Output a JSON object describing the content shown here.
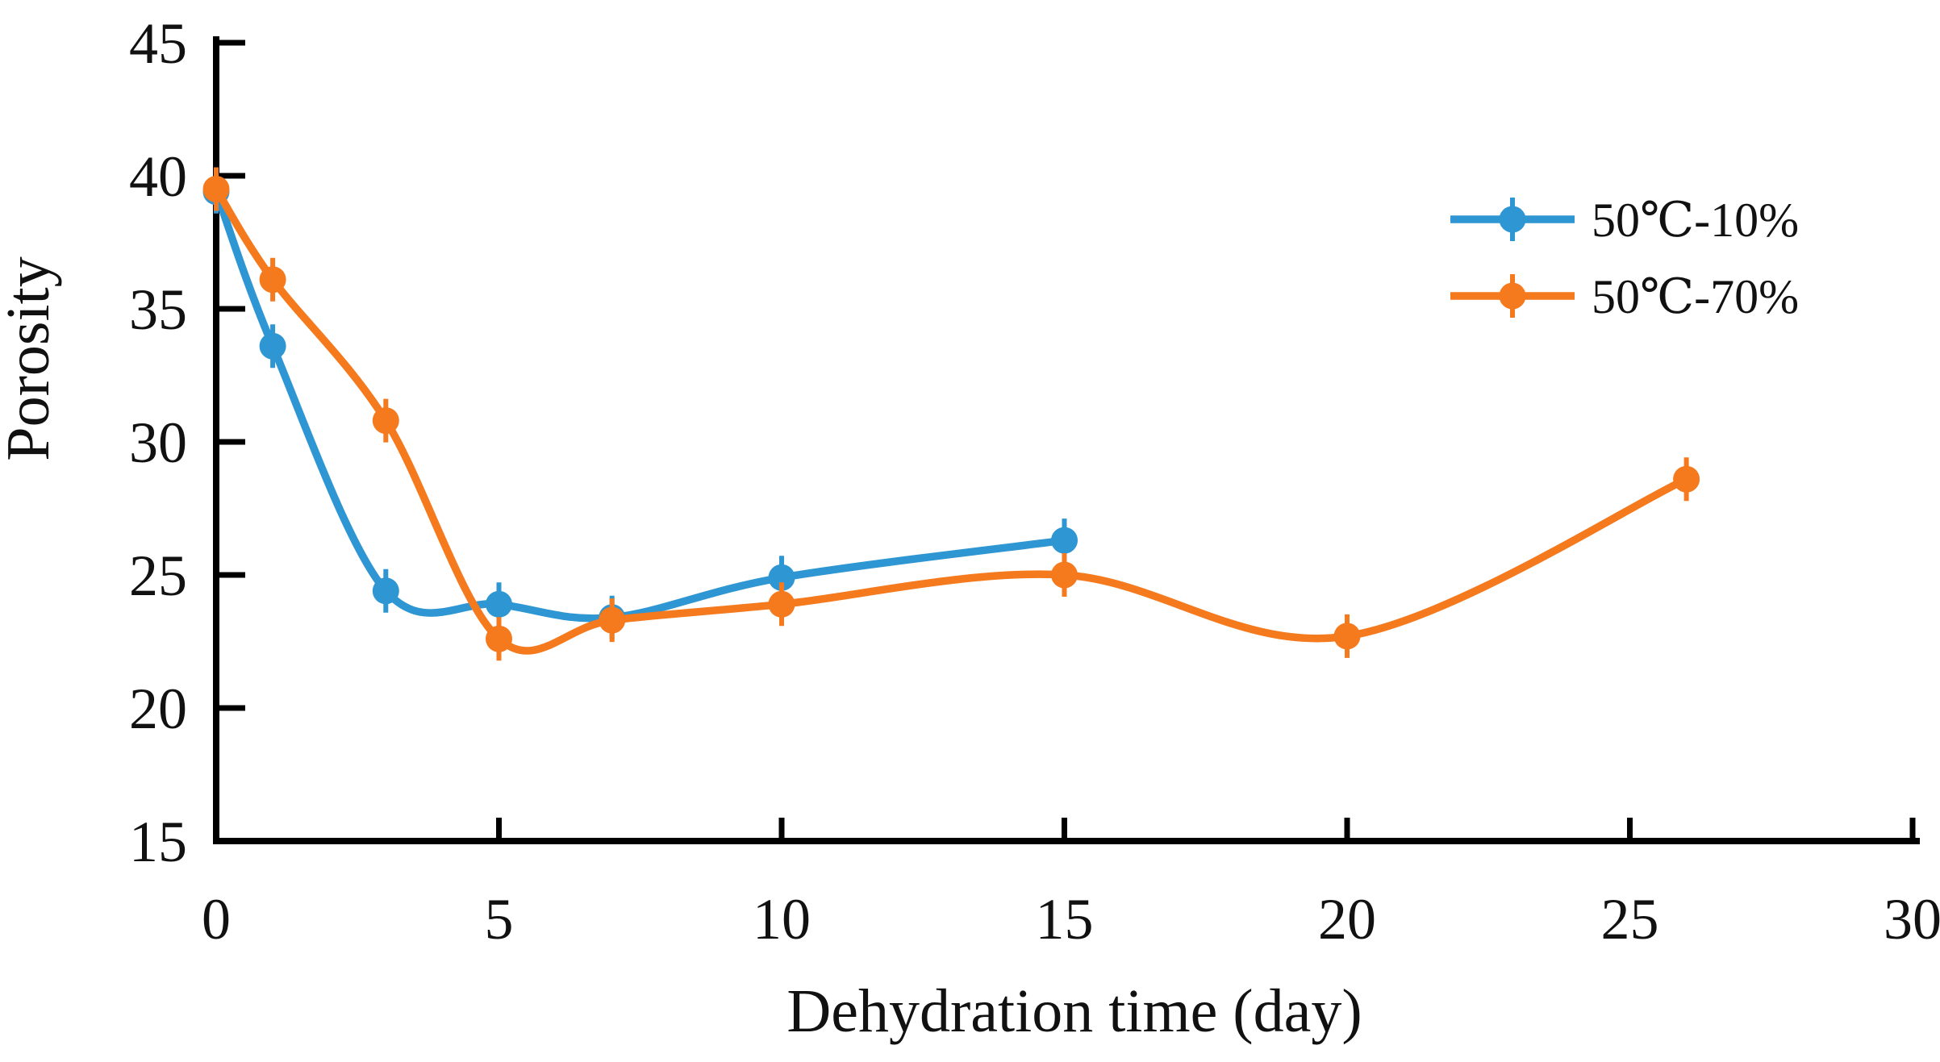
{
  "figure": {
    "background_color": "#ffffff",
    "axis_color": "#000000",
    "text_color": "#111111"
  },
  "chart_data": {
    "type": "line",
    "title": "",
    "xlabel": "Dehydration time (day)",
    "ylabel": "Porosity",
    "xlim": [
      0,
      30
    ],
    "ylim": [
      15,
      45
    ],
    "x_ticks": [
      0,
      5,
      10,
      15,
      20,
      25,
      30
    ],
    "y_ticks": [
      15,
      20,
      25,
      30,
      35,
      40,
      45
    ],
    "grid": false,
    "legend_position": "upper right",
    "line_style": "smoothed",
    "marker": "circle-with-whisker",
    "series": [
      {
        "name": "50℃-10%",
        "color": "#2E96D3",
        "x": [
          0,
          1,
          3,
          5,
          7,
          10,
          15
        ],
        "values": [
          39.4,
          33.6,
          24.4,
          23.9,
          23.4,
          24.9,
          26.3
        ]
      },
      {
        "name": "50℃-70%",
        "color": "#F5791D",
        "x": [
          0,
          1,
          3,
          5,
          7,
          10,
          15,
          20,
          26
        ],
        "values": [
          39.5,
          36.1,
          30.8,
          22.6,
          23.3,
          23.9,
          25.0,
          22.7,
          28.6
        ]
      }
    ]
  }
}
